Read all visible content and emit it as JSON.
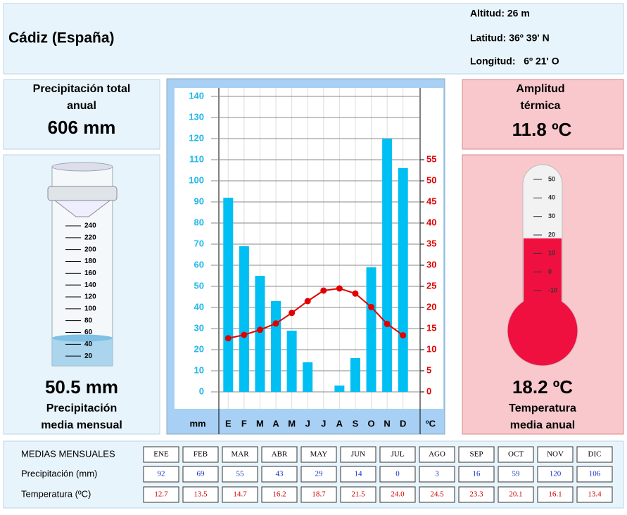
{
  "header": {
    "title": "Cádiz (España)",
    "altitude": "Altitud: 26 m",
    "latitude": "Latitud: 36º 39' N",
    "longitude": "Longitud:   6º 21' O"
  },
  "total_precipitation": {
    "label": [
      "Precipitación total",
      "anual"
    ],
    "value": 606,
    "unit": "mm"
  },
  "mean_precipitation": {
    "value": 50.5,
    "unit": "mm",
    "label": [
      "Precipitación",
      "media mensual"
    ],
    "gauge_ticks": [
      20,
      40,
      60,
      80,
      100,
      120,
      140,
      160,
      180,
      200,
      220,
      240
    ],
    "gauge_lim": [
      0,
      240
    ]
  },
  "thermal_amplitude": {
    "label": [
      "Amplitud",
      "térmica"
    ],
    "value": 11.8,
    "unit": "ºC"
  },
  "mean_temperature": {
    "value": 18.2,
    "unit": "ºC",
    "label": [
      "Temperatura",
      "media anual"
    ],
    "thermometer_ticks": [
      -10,
      0,
      10,
      20,
      30,
      40,
      50
    ],
    "thermometer_lim": [
      -10,
      50
    ]
  },
  "chart_data": {
    "type": "bar",
    "categories": [
      "E",
      "F",
      "M",
      "A",
      "M",
      "J",
      "J",
      "A",
      "S",
      "O",
      "N",
      "D"
    ],
    "x_label": "mm",
    "y2_label": "ºC",
    "series": [
      {
        "name": "Precipitación (mm)",
        "color": "#00bff2",
        "values": [
          92,
          69,
          55,
          43,
          29,
          14,
          0,
          3,
          16,
          59,
          120,
          106
        ]
      },
      {
        "name": "Temperatura (ºC)",
        "color": "#e00000",
        "axis": "y2",
        "type": "line",
        "values": [
          12.7,
          13.5,
          14.7,
          16.2,
          18.7,
          21.5,
          24.0,
          24.5,
          23.3,
          20.1,
          16.1,
          13.4
        ],
        "value_labels": [
          "12.7",
          "13.5",
          "14.7",
          "16.2",
          "18.7",
          "21.5",
          "24.0",
          "24.5",
          "23.3",
          "20.1",
          "16.1",
          "13.4"
        ]
      }
    ],
    "ylim": [
      -8,
      144
    ],
    "yticks": [
      0,
      10,
      20,
      30,
      40,
      50,
      60,
      70,
      80,
      90,
      100,
      110,
      120,
      130,
      140
    ],
    "y2lim": [
      -4,
      72
    ],
    "y2ticks": [
      0,
      5,
      10,
      15,
      20,
      25,
      30,
      35,
      40,
      45,
      50,
      55
    ],
    "grid": true
  },
  "table": {
    "title": "MEDIAS MENSUALES",
    "months": [
      "ENE",
      "FEB",
      "MAR",
      "ABR",
      "MAY",
      "JUN",
      "JUL",
      "AGO",
      "SEP",
      "OCT",
      "NOV",
      "DIC"
    ]
  }
}
